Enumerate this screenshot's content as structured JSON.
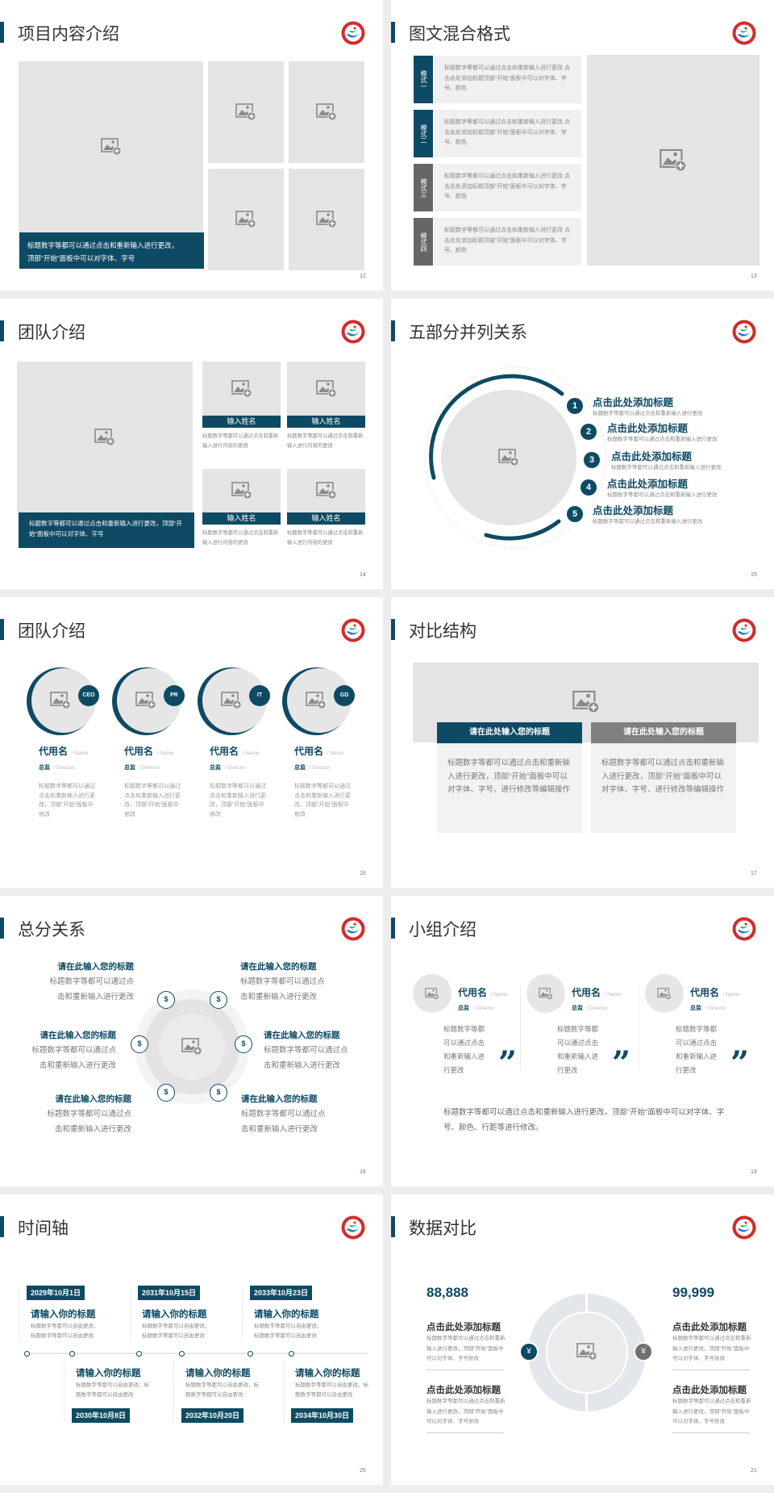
{
  "colors": {
    "accent": "#0e4a63",
    "placeholder": "#e4e4e4",
    "secondary": "#808080",
    "logo_red": "#d42a2a"
  },
  "icons": {
    "image": "image-placeholder-icon",
    "logo": "school-logo",
    "money": "money-bag-icon",
    "quote": "quote-icon"
  },
  "s12": {
    "title": "项目内容介绍",
    "caption_1": "标题数字等都可以通过点击和重新输入进行更改，",
    "caption_2": "顶部“开始”面板中可以对字体、字号",
    "page": "12"
  },
  "s13": {
    "title": "图文混合格式",
    "page": "13",
    "items": [
      {
        "label": "模式一",
        "text": "标题数字等都可以通过点击和重新输入进行更改 点击此处添加标题顶部“开始”面板中可以对字体、字号、颜色"
      },
      {
        "label": "模式二",
        "text": "标题数字等都可以通过点击和重新输入进行更改 点击此处添加标题顶部“开始”面板中可以对字体、字号、颜色"
      },
      {
        "label": "模式三",
        "text": "标题数字等都可以通过点击和重新输入进行更改 点击此处添加标题顶部“开始”面板中可以对字体、字号、颜色"
      },
      {
        "label": "模式四",
        "text": "标题数字等都可以通过点击和重新输入进行更改 点击此处添加标题顶部“开始”面板中可以对字体、字号、颜色"
      }
    ]
  },
  "s14": {
    "title": "团队介绍",
    "page": "14",
    "caption": "标题数字等都可以通过点击和重新输入进行更改，顶部“开始”面板中可以对字体、字号",
    "members": [
      {
        "name": "输入姓名",
        "text": "标题数字等都可以通过点击和重新输入进行内容的更改"
      },
      {
        "name": "输入姓名",
        "text": "标题数字等都可以通过点击和重新输入进行内容的更改"
      },
      {
        "name": "输入姓名",
        "text": "标题数字等都可以通过点击和重新输入进行内容的更改"
      },
      {
        "name": "输入姓名",
        "text": "标题数字等都可以通过点击和重新输入进行内容的更改"
      }
    ]
  },
  "s15": {
    "title": "五部分并列关系",
    "page": "15",
    "items": [
      {
        "num": "1",
        "title": "点击此处添加标题",
        "text": "标题数字等都可以通过点击和重新输入进行更改"
      },
      {
        "num": "2",
        "title": "点击此处添加标题",
        "text": "标题数字等都可以通过点击和重新输入进行更改"
      },
      {
        "num": "3",
        "title": "点击此处添加标题",
        "text": "标题数字等都可以通过点击和重新输入进行更改"
      },
      {
        "num": "4",
        "title": "点击此处添加标题",
        "text": "标题数字等都可以通过点击和重新输入进行更改"
      },
      {
        "num": "5",
        "title": "点击此处添加标题",
        "text": "标题数字等都可以通过点击和重新输入进行更改"
      }
    ]
  },
  "s16": {
    "title": "团队介绍",
    "page": "16",
    "members": [
      {
        "badge": "CEO",
        "name": "代用名",
        "name_en": "/ Name",
        "role": "总监",
        "role_en": "/ Director",
        "text": "标题数字等都可以通过点击和重新输入进行更改，顶部“开始”面板中修改"
      },
      {
        "badge": "PR",
        "name": "代用名",
        "name_en": "/ Name",
        "role": "总监",
        "role_en": "/ Director",
        "text": "标题数字等都可以通过点击和重新输入进行更改，顶部“开始”面板中修改"
      },
      {
        "badge": "IT",
        "name": "代用名",
        "name_en": "/ Name",
        "role": "总监",
        "role_en": "/ Director",
        "text": "标题数字等都可以通过点击和重新输入进行更改，顶部“开始”面板中修改"
      },
      {
        "badge": "GD",
        "name": "代用名",
        "name_en": "/ Name",
        "role": "总监",
        "role_en": "/ Director",
        "text": "标题数字等都可以通过点击和重新输入进行更改，顶部“开始”面板中修改"
      }
    ]
  },
  "s17": {
    "title": "对比结构",
    "page": "17",
    "cards": [
      {
        "heading": "请在此处输入您的标题",
        "text": "标题数字等都可以通过点击和重新输入进行更改，顶部“开始”面板中可以对字体、字号、进行修改等编辑操作"
      },
      {
        "heading": "请在此处输入您的标题",
        "text": "标题数字等都可以通过点击和重新输入进行更改，顶部“开始”面板中可以对字体、字号、进行修改等编辑操作"
      }
    ]
  },
  "s18": {
    "title": "总分关系",
    "page": "18",
    "items": [
      {
        "title": "请在此输入您的标题",
        "line1": "标题数字等都可以通过点",
        "line2": "击和重新输入进行更改"
      },
      {
        "title": "请在此输入您的标题",
        "line1": "标题数字等都可以通过点",
        "line2": "击和重新输入进行更改"
      },
      {
        "title": "请在此输入您的标题",
        "line1": "标题数字等都可以通过点",
        "line2": "击和重新输入进行更改"
      },
      {
        "title": "请在此输入您的标题",
        "line1": "标题数字等都可以通过点",
        "line2": "击和重新输入进行更改"
      },
      {
        "title": "请在此输入您的标题",
        "line1": "标题数字等都可以通过点",
        "line2": "击和重新输入进行更改"
      },
      {
        "title": "请在此输入您的标题",
        "line1": "标题数字等都可以通过点",
        "line2": "击和重新输入进行更改"
      }
    ]
  },
  "s19": {
    "title": "小组介绍",
    "page": "19",
    "members": [
      {
        "name": "代用名",
        "name_en": "/ Name",
        "role": "总监",
        "role_en": "/ Director",
        "text": "标题数字等都可以通过点击和重新输入进行更改"
      },
      {
        "name": "代用名",
        "name_en": "/ Name",
        "role": "总监",
        "role_en": "/ Director",
        "text": "标题数字等都可以通过点击和重新输入进行更改"
      },
      {
        "name": "代用名",
        "name_en": "/ Name",
        "role": "总监",
        "role_en": "/ Director",
        "text": "标题数字等都可以通过点击和重新输入进行更改"
      }
    ],
    "quote": "”",
    "summary": "标题数字等都可以通过点击和重新输入进行更改，顶部“开始”面板中可以对字体、字号、颜色、行距等进行修改。"
  },
  "s20": {
    "title": "时间轴",
    "page": "20",
    "events": [
      {
        "date": "2029年10月1日",
        "title": "请输入你的标题",
        "text": "标题数字等都可以自由更改，标题数字等都可以自由更改"
      },
      {
        "date": "2030年10月8日",
        "title": "请输入你的标题",
        "text": "标题数字等都可以自由更改，标题数字等都可以自由更改"
      },
      {
        "date": "2031年10月15日",
        "title": "请输入你的标题",
        "text": "标题数字等都可以自由更改，标题数字等都可以自由更改"
      },
      {
        "date": "2032年10月20日",
        "title": "请输入你的标题",
        "text": "标题数字等都可以自由更改，标题数字等都可以自由更改"
      },
      {
        "date": "2033年10月23日",
        "title": "请输入你的标题",
        "text": "标题数字等都可以自由更改，标题数字等都可以自由更改"
      },
      {
        "date": "2034年10月30日",
        "title": "请输入你的标题",
        "text": "标题数字等都可以自由更改，标题数字等都可以自由更改"
      }
    ]
  },
  "s21": {
    "title": "数据对比",
    "page": "21",
    "left": {
      "value": "88,888",
      "items": [
        {
          "title": "点击此处添加标题",
          "text": "标题数字等都可以通过点击和重新输入进行更改，顶部“开始”面板中可以对字体、字号修改"
        },
        {
          "title": "点击此处添加标题",
          "text": "标题数字等都可以通过点击和重新输入进行更改，顶部“开始”面板中可以对字体、字号修改"
        }
      ]
    },
    "right": {
      "value": "99,999",
      "items": [
        {
          "title": "点击此处添加标题",
          "text": "标题数字等都可以通过点击和重新输入进行更改，顶部“开始”面板中可以对字体、字号修改"
        },
        {
          "title": "点击此处添加标题",
          "text": "标题数字等都可以通过点击和重新输入进行更改，顶部“开始”面板中可以对字体、字号修改"
        }
      ]
    }
  }
}
